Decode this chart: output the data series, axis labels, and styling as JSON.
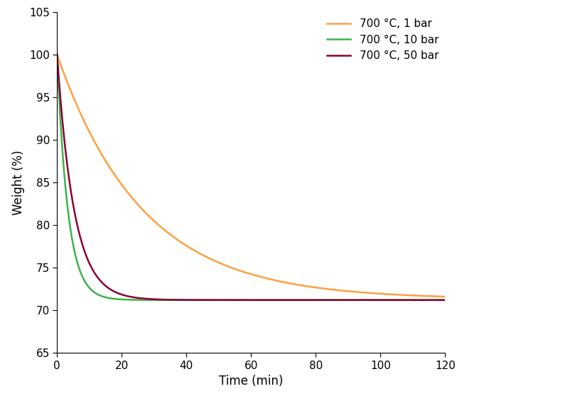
{
  "xlabel": "Time (min)",
  "ylabel": "Weight (%)",
  "xlim": [
    0,
    120
  ],
  "ylim": [
    65,
    105
  ],
  "yticks": [
    65,
    70,
    75,
    80,
    85,
    90,
    95,
    100,
    105
  ],
  "xticks": [
    0,
    20,
    40,
    60,
    80,
    100,
    120
  ],
  "series": [
    {
      "label": "700 °C, 1 bar",
      "color": "#FFA040",
      "final_value": 71.3,
      "rate": 0.038
    },
    {
      "label": "700 °C, 10 bar",
      "color": "#3CB34A",
      "final_value": 71.2,
      "rate": 0.3
    },
    {
      "label": "700 °C, 50 bar",
      "color": "#8B0033",
      "final_value": 71.2,
      "rate": 0.19
    }
  ],
  "background_color": "#ffffff",
  "linewidth": 1.8,
  "legend_fontsize": 11,
  "axis_fontsize": 12,
  "tick_fontsize": 11
}
